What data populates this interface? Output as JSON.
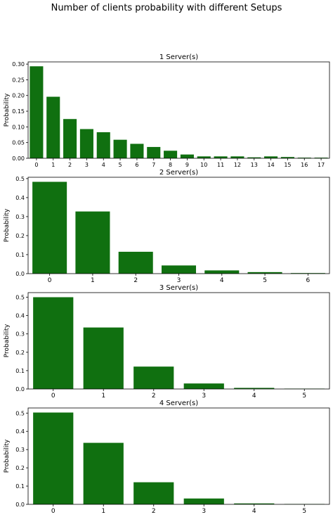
{
  "suptitle": "Number of clients probability with different Setups",
  "bar_color": "#107010",
  "chart_data": [
    {
      "type": "bar",
      "title": "1 Server(s)",
      "xlabel": "",
      "ylabel": "Probability",
      "categories": [
        "0",
        "1",
        "2",
        "3",
        "4",
        "5",
        "6",
        "7",
        "8",
        "9",
        "10",
        "11",
        "12",
        "13",
        "14",
        "15",
        "16",
        "17"
      ],
      "values": [
        0.293,
        0.196,
        0.125,
        0.093,
        0.083,
        0.059,
        0.046,
        0.036,
        0.024,
        0.012,
        0.006,
        0.006,
        0.006,
        0.003,
        0.006,
        0.004,
        0.002,
        0.002
      ],
      "ylim": [
        0,
        0.307
      ],
      "yticks": [
        0.0,
        0.05,
        0.1,
        0.15,
        0.2,
        0.25,
        0.3
      ],
      "ytick_labels": [
        "0.00",
        "0.05",
        "0.10",
        "0.15",
        "0.20",
        "0.25",
        "0.30"
      ],
      "grid": false
    },
    {
      "type": "bar",
      "title": "2 Server(s)",
      "xlabel": "",
      "ylabel": "Probability",
      "categories": [
        "0",
        "1",
        "2",
        "3",
        "4",
        "5",
        "6"
      ],
      "values": [
        0.483,
        0.327,
        0.115,
        0.043,
        0.017,
        0.008,
        0.003
      ],
      "ylim": [
        0,
        0.507
      ],
      "yticks": [
        0.0,
        0.1,
        0.2,
        0.3,
        0.4,
        0.5
      ],
      "ytick_labels": [
        "0.0",
        "0.1",
        "0.2",
        "0.3",
        "0.4",
        "0.5"
      ],
      "grid": false
    },
    {
      "type": "bar",
      "title": "3 Server(s)",
      "xlabel": "",
      "ylabel": "Probability",
      "categories": [
        "0",
        "1",
        "2",
        "3",
        "4",
        "5"
      ],
      "values": [
        0.5,
        0.335,
        0.122,
        0.03,
        0.006,
        0.002
      ],
      "ylim": [
        0,
        0.525
      ],
      "yticks": [
        0.0,
        0.1,
        0.2,
        0.3,
        0.4,
        0.5
      ],
      "ytick_labels": [
        "0.0",
        "0.1",
        "0.2",
        "0.3",
        "0.4",
        "0.5"
      ],
      "grid": false
    },
    {
      "type": "bar",
      "title": "4 Server(s)",
      "xlabel": "",
      "ylabel": "Probability",
      "categories": [
        "0",
        "1",
        "2",
        "3",
        "4",
        "5"
      ],
      "values": [
        0.503,
        0.337,
        0.121,
        0.032,
        0.005,
        0.002
      ],
      "ylim": [
        0,
        0.528
      ],
      "yticks": [
        0.0,
        0.1,
        0.2,
        0.3,
        0.4,
        0.5
      ],
      "ytick_labels": [
        "0.0",
        "0.1",
        "0.2",
        "0.3",
        "0.4",
        "0.5"
      ],
      "grid": false
    }
  ]
}
